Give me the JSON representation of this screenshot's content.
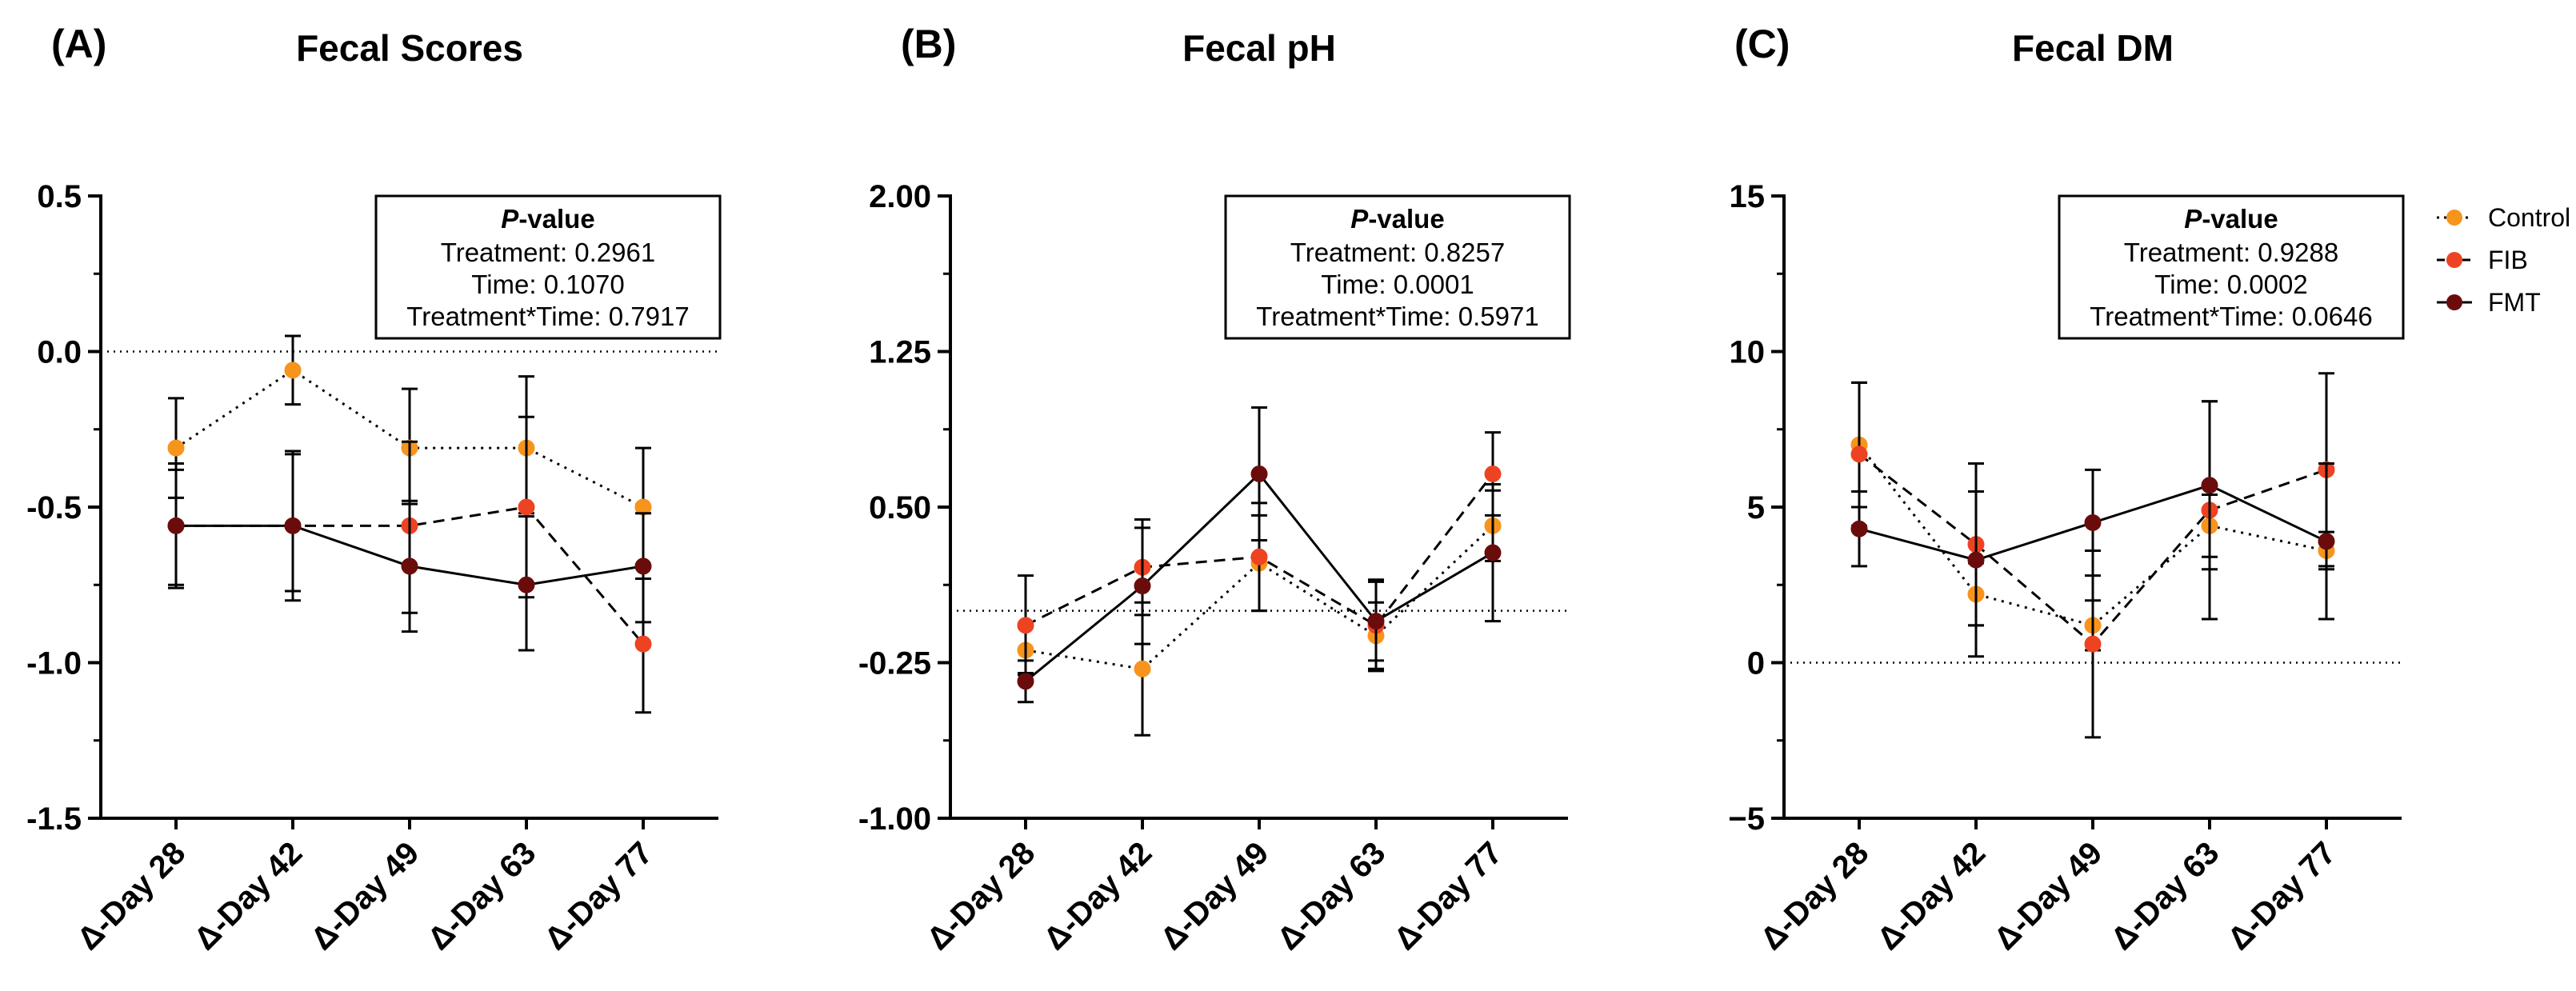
{
  "colors": {
    "Control": "#f7941d",
    "FIB": "#ee4322",
    "FMT": "#6b0c0c",
    "axis": "#000000"
  },
  "legend": [
    {
      "name": "Control",
      "dash": "dotted"
    },
    {
      "name": "FIB",
      "dash": "dashed"
    },
    {
      "name": "FMT",
      "dash": "solid"
    }
  ],
  "chart_data": [
    {
      "type": "line",
      "letter": "(A)",
      "title": "Fecal Scores",
      "categories": [
        "Δ-Day 28",
        "Δ-Day 42",
        "Δ-Day 49",
        "Δ-Day 63",
        "Δ-Day 77"
      ],
      "ylim": [
        -1.5,
        0.5
      ],
      "yticks": [
        0.5,
        0.0,
        -0.5,
        -1.0,
        -1.5
      ],
      "ytick_labels": [
        "0.5",
        "0.0",
        "-0.5",
        "-1.0",
        "-1.5"
      ],
      "reference_line": 0,
      "pvalue_box": {
        "heading_italic": "P",
        "heading_rest": "-value",
        "lines": [
          "Treatment: 0.2961",
          "Time: 0.1070",
          "Treatment*Time: 0.7917"
        ]
      },
      "series": [
        {
          "name": "Control",
          "values": [
            -0.31,
            -0.06,
            -0.31,
            -0.31,
            -0.5
          ],
          "lower": [
            -0.47,
            -0.17,
            -0.49,
            -0.52,
            -0.73
          ],
          "upper": [
            -0.15,
            0.05,
            -0.12,
            -0.08,
            -0.31
          ]
        },
        {
          "name": "FIB",
          "values": [
            -0.56,
            -0.56,
            -0.56,
            -0.5,
            -0.94
          ],
          "lower": [
            -0.75,
            -0.77,
            -0.84,
            -0.79,
            -1.16
          ],
          "upper": [
            -0.38,
            -0.33,
            -0.29,
            -0.21,
            -0.73
          ]
        },
        {
          "name": "FMT",
          "values": [
            -0.56,
            -0.56,
            -0.69,
            -0.75,
            -0.69
          ],
          "lower": [
            -0.76,
            -0.8,
            -0.9,
            -0.96,
            -0.87
          ],
          "upper": [
            -0.36,
            -0.32,
            -0.48,
            -0.53,
            -0.52
          ]
        }
      ]
    },
    {
      "type": "line",
      "letter": "(B)",
      "title": "Fecal pH",
      "categories": [
        "Δ-Day 28",
        "Δ-Day 42",
        "Δ-Day 49",
        "Δ-Day 63",
        "Δ-Day 77"
      ],
      "ylim": [
        -1.0,
        2.0
      ],
      "yticks": [
        2.0,
        1.25,
        0.5,
        -0.25,
        -1.0
      ],
      "ytick_labels": [
        "2.00",
        "1.25",
        "0.50",
        "-0.25",
        "-1.00"
      ],
      "reference_line": 0,
      "pvalue_box": {
        "heading_italic": "P",
        "heading_rest": "-value",
        "lines": [
          "Treatment: 0.8257",
          "Time: 0.0001",
          "Treatment*Time: 0.5971"
        ]
      },
      "series": [
        {
          "name": "Control",
          "values": [
            -0.19,
            -0.28,
            0.23,
            -0.12,
            0.41
          ],
          "lower": [
            -0.3,
            -0.6,
            0.0,
            -0.28,
            0.24
          ],
          "upper": [
            -0.08,
            0.04,
            0.46,
            0.04,
            0.58
          ]
        },
        {
          "name": "FIB",
          "values": [
            -0.07,
            0.21,
            0.26,
            -0.07,
            0.66
          ],
          "lower": [
            -0.31,
            -0.02,
            0.0,
            -0.29,
            0.46
          ],
          "upper": [
            0.17,
            0.44,
            0.52,
            0.15,
            0.86
          ]
        },
        {
          "name": "FMT",
          "values": [
            -0.34,
            0.12,
            0.66,
            -0.05,
            0.28
          ],
          "lower": [
            -0.44,
            -0.16,
            0.34,
            -0.24,
            -0.05
          ],
          "upper": [
            -0.24,
            0.4,
            0.98,
            0.14,
            0.61
          ]
        }
      ]
    },
    {
      "type": "line",
      "letter": "(C)",
      "title": "Fecal DM",
      "categories": [
        "Δ-Day 28",
        "Δ-Day 42",
        "Δ-Day 49",
        "Δ-Day 63",
        "Δ-Day 77"
      ],
      "ylim": [
        -5,
        15
      ],
      "yticks": [
        15,
        10,
        5,
        0,
        -5
      ],
      "ytick_labels": [
        "15",
        "10",
        "5",
        "0",
        "−5"
      ],
      "reference_line": 0,
      "pvalue_box": {
        "heading_italic": "P",
        "heading_rest": "-value",
        "lines": [
          "Treatment: 0.9288",
          "Time: 0.0002",
          "Treatment*Time: 0.0646"
        ]
      },
      "series": [
        {
          "name": "Control",
          "values": [
            7.0,
            2.2,
            1.2,
            4.4,
            3.6
          ],
          "lower": [
            5.0,
            1.2,
            0.4,
            3.4,
            3.0
          ],
          "upper": [
            9.0,
            3.2,
            2.0,
            5.4,
            4.2
          ]
        },
        {
          "name": "FIB",
          "values": [
            6.7,
            3.8,
            0.6,
            4.9,
            6.2
          ],
          "lower": [
            4.4,
            1.2,
            -2.4,
            1.4,
            3.1
          ],
          "upper": [
            9.0,
            6.4,
            3.6,
            8.4,
            9.3
          ]
        },
        {
          "name": "FMT",
          "values": [
            4.3,
            3.3,
            4.5,
            5.7,
            3.9
          ],
          "lower": [
            3.1,
            0.2,
            2.8,
            3.0,
            1.4
          ],
          "upper": [
            5.5,
            5.5,
            6.2,
            8.4,
            6.4
          ]
        }
      ]
    }
  ]
}
